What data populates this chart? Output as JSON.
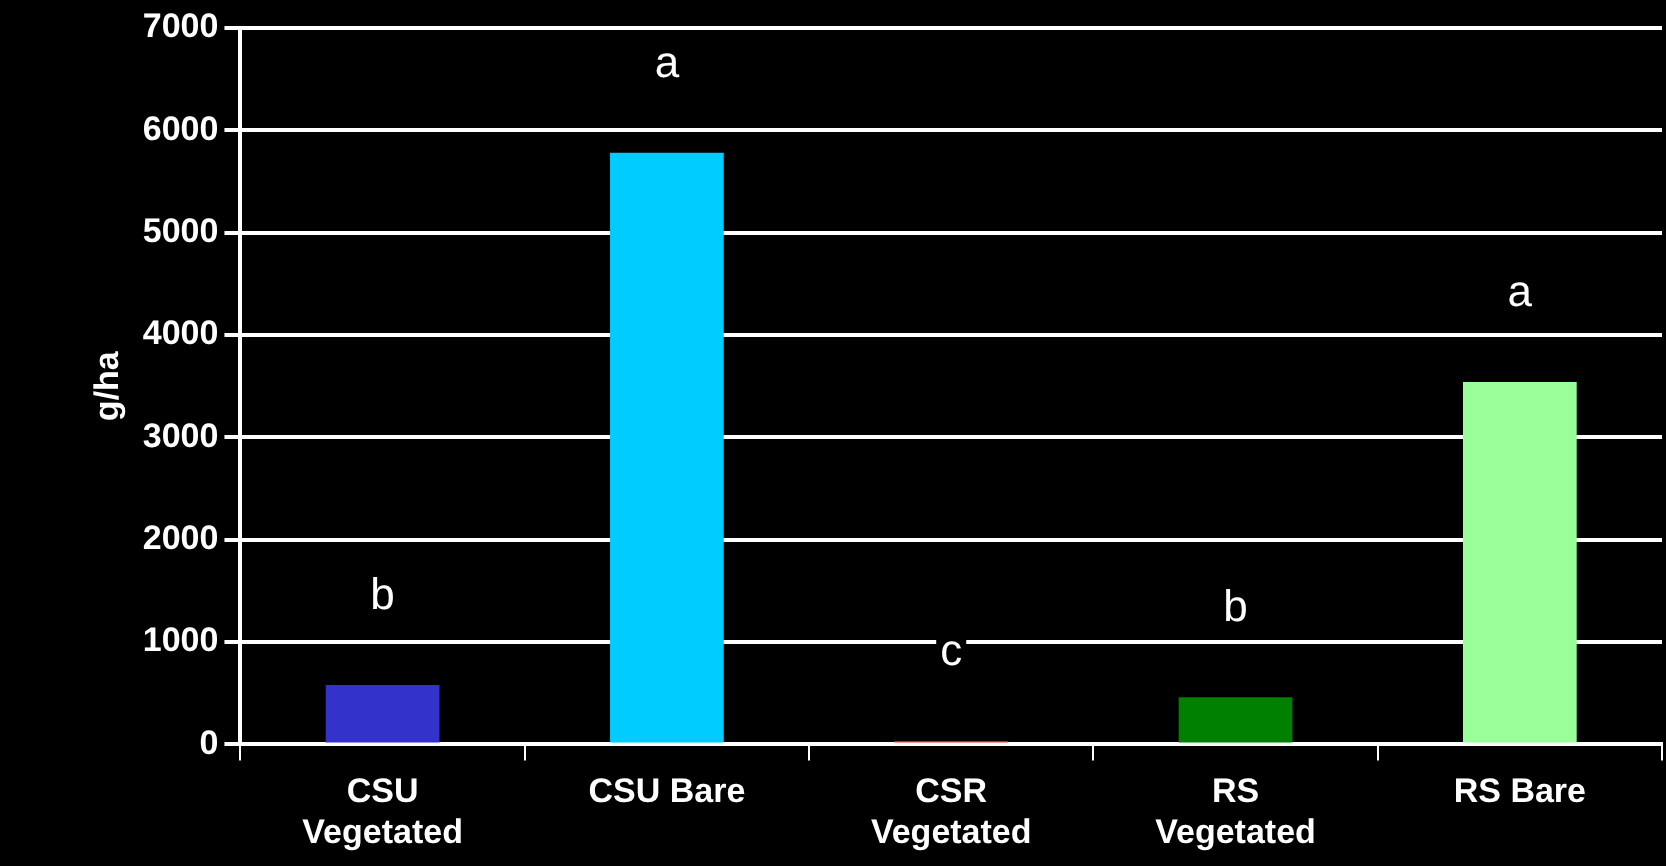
{
  "chart_data": {
    "type": "bar",
    "ylabel": "g/ha",
    "categories": [
      "CSU Vegetated",
      "CSU Bare",
      "CSR Vegetated",
      "RS Vegetated",
      "RS Bare"
    ],
    "values": [
      580,
      5780,
      30,
      460,
      3540
    ],
    "colors": [
      "#3333cc",
      "#00ccff",
      "#ff3333",
      "#008000",
      "#99ff99"
    ],
    "value_labels": [
      "b",
      "a",
      "c",
      "b",
      "a"
    ],
    "ylim": [
      0,
      7000
    ],
    "yticks": [
      0,
      1000,
      2000,
      3000,
      4000,
      5000,
      6000,
      7000
    ],
    "grid": "y",
    "legend": false
  }
}
